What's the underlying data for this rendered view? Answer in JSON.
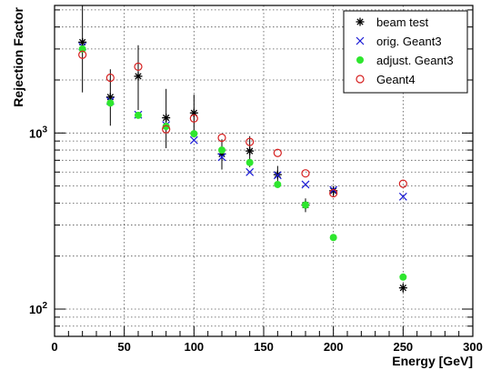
{
  "chart_data": {
    "type": "scatter",
    "xlabel": "Energy [GeV]",
    "ylabel": "Rejection Factor",
    "xlim": [
      0,
      300
    ],
    "ylim": [
      70,
      5300
    ],
    "yscale": "log",
    "grid": true,
    "legend_position": "top-right",
    "x_ticks": [
      0,
      50,
      100,
      150,
      200,
      250,
      300
    ],
    "y_tick_labels": [
      {
        "value": 100,
        "base": "10",
        "exp": "2"
      },
      {
        "value": 1000,
        "base": "10",
        "exp": "3"
      }
    ],
    "series": [
      {
        "name": "beam test",
        "marker": "asterisk",
        "color": "#000000",
        "points": [
          {
            "x": 20,
            "y": 3280,
            "lo": 1700,
            "hi": 5300
          },
          {
            "x": 40,
            "y": 1600,
            "lo": 1100,
            "hi": 2300
          },
          {
            "x": 60,
            "y": 2100,
            "lo": 1350,
            "hi": 3150
          },
          {
            "x": 80,
            "y": 1220,
            "lo": 820,
            "hi": 1780
          },
          {
            "x": 100,
            "y": 1300,
            "lo": 1000,
            "hi": 1650
          },
          {
            "x": 120,
            "y": 760,
            "lo": 620,
            "hi": 920
          },
          {
            "x": 140,
            "y": 790,
            "lo": 640,
            "hi": 960
          },
          {
            "x": 160,
            "y": 580,
            "lo": 510,
            "hi": 650
          },
          {
            "x": 180,
            "y": 390,
            "lo": 355,
            "hi": 425
          },
          {
            "x": 200,
            "y": 470,
            "lo": 435,
            "hi": 500
          },
          {
            "x": 250,
            "y": 132,
            "lo": 124,
            "hi": 140
          }
        ]
      },
      {
        "name": "orig. Geant3",
        "marker": "x",
        "color": "#1a1ad6",
        "points": [
          {
            "x": 20,
            "y": 3100
          },
          {
            "x": 40,
            "y": 1520
          },
          {
            "x": 60,
            "y": 1270
          },
          {
            "x": 80,
            "y": 1110
          },
          {
            "x": 100,
            "y": 910
          },
          {
            "x": 120,
            "y": 730
          },
          {
            "x": 140,
            "y": 600
          },
          {
            "x": 160,
            "y": 575
          },
          {
            "x": 180,
            "y": 510
          },
          {
            "x": 200,
            "y": 475
          },
          {
            "x": 250,
            "y": 435
          }
        ]
      },
      {
        "name": "adjust. Geant3",
        "marker": "dot",
        "color": "#2ee62e",
        "points": [
          {
            "x": 20,
            "y": 3000
          },
          {
            "x": 40,
            "y": 1480
          },
          {
            "x": 60,
            "y": 1260
          },
          {
            "x": 80,
            "y": 1090
          },
          {
            "x": 100,
            "y": 990
          },
          {
            "x": 120,
            "y": 800
          },
          {
            "x": 140,
            "y": 680
          },
          {
            "x": 160,
            "y": 510
          },
          {
            "x": 180,
            "y": 390
          },
          {
            "x": 200,
            "y": 255
          },
          {
            "x": 250,
            "y": 152
          }
        ]
      },
      {
        "name": "Geant4",
        "marker": "circle",
        "color": "#d62020",
        "points": [
          {
            "x": 20,
            "y": 2780
          },
          {
            "x": 40,
            "y": 2060
          },
          {
            "x": 60,
            "y": 2380
          },
          {
            "x": 80,
            "y": 1050
          },
          {
            "x": 100,
            "y": 1210
          },
          {
            "x": 120,
            "y": 940
          },
          {
            "x": 140,
            "y": 890
          },
          {
            "x": 160,
            "y": 770
          },
          {
            "x": 180,
            "y": 590
          },
          {
            "x": 200,
            "y": 455
          },
          {
            "x": 250,
            "y": 515
          }
        ]
      }
    ]
  }
}
